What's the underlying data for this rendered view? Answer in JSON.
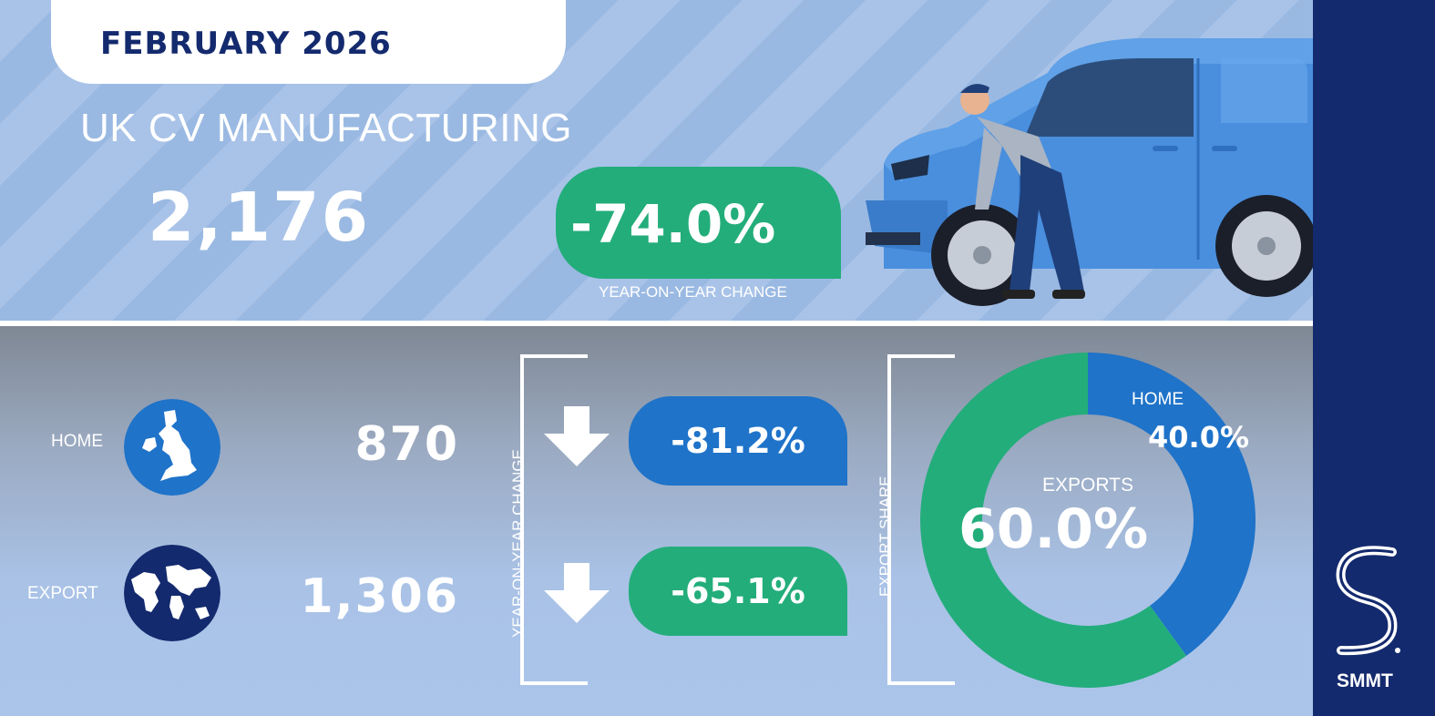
{
  "header": {
    "date": "FEBRUARY 2026",
    "title": "UK CV MANUFACTURING",
    "total": "2,176",
    "total_yoy": "-74.0%",
    "yoy_label": "YEAR-ON-YEAR CHANGE"
  },
  "rows": [
    {
      "label": "HOME",
      "value": "870",
      "change": "-81.2%",
      "icon": "uk-map-icon",
      "color": "#1f73c9"
    },
    {
      "label": "EXPORT",
      "value": "1,306",
      "change": "-65.1%",
      "icon": "globe-icon",
      "color": "#142a6e"
    }
  ],
  "change_axis_label": "YEAR-ON-YEAR CHANGE",
  "share_axis_label": "EXPORT SHARE",
  "share": {
    "home_label": "HOME",
    "home_value": "40.0%",
    "export_label": "EXPORTS",
    "export_value": "60.0%"
  },
  "chart_data": {
    "type": "pie",
    "categories": [
      "HOME",
      "EXPORTS"
    ],
    "values": [
      40.0,
      60.0
    ],
    "colors": [
      "#1f73c9",
      "#23ad7b"
    ]
  },
  "colors": {
    "navy": "#142a6e",
    "green": "#23ad7b",
    "blue": "#1f73c9"
  },
  "brand": {
    "logo_text": "SMMT"
  }
}
